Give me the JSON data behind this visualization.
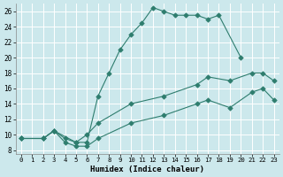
{
  "xlabel": "Humidex (Indice chaleur)",
  "background_color": "#cce8ec",
  "grid_color": "#ffffff",
  "line_color": "#2e7d6e",
  "xlim": [
    -0.5,
    23.5
  ],
  "ylim": [
    7.5,
    27
  ],
  "xticks": [
    0,
    1,
    2,
    3,
    4,
    5,
    6,
    7,
    8,
    9,
    10,
    11,
    12,
    13,
    14,
    15,
    16,
    17,
    18,
    19,
    20,
    21,
    22,
    23
  ],
  "yticks": [
    8,
    10,
    12,
    14,
    16,
    18,
    20,
    22,
    24,
    26
  ],
  "series_top_x": [
    0,
    2,
    3,
    5,
    6,
    7,
    8,
    9,
    10,
    11,
    12,
    13,
    14,
    15,
    16,
    17,
    18,
    20
  ],
  "series_top_y": [
    9.5,
    9.5,
    10.5,
    9.0,
    9.0,
    15.0,
    18.0,
    21.0,
    23.0,
    24.5,
    26.5,
    26.0,
    25.5,
    25.5,
    25.5,
    25.0,
    25.5,
    20.0
  ],
  "series_mid_x": [
    0,
    2,
    3,
    4,
    5,
    6,
    7,
    10,
    13,
    16,
    17,
    19,
    21,
    22,
    23
  ],
  "series_mid_y": [
    9.5,
    9.5,
    10.5,
    9.5,
    9.0,
    10.0,
    11.5,
    14.0,
    15.0,
    16.5,
    17.5,
    17.0,
    18.0,
    18.0,
    17.0
  ],
  "series_bot_x": [
    0,
    2,
    3,
    4,
    5,
    6,
    7,
    10,
    13,
    16,
    17,
    19,
    21,
    22,
    23
  ],
  "series_bot_y": [
    9.5,
    9.5,
    10.5,
    9.0,
    8.5,
    8.5,
    9.5,
    11.5,
    12.5,
    14.0,
    14.5,
    13.5,
    15.5,
    16.0,
    14.5
  ]
}
